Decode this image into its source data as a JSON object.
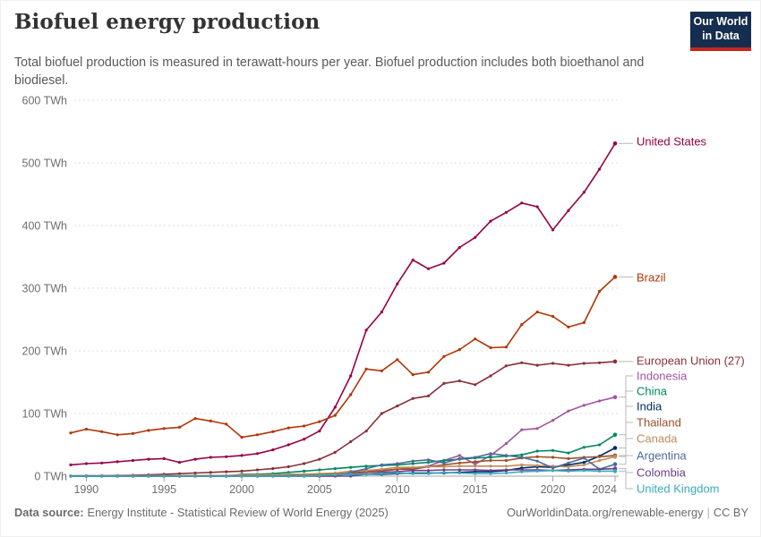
{
  "header": {
    "title": "Biofuel energy production",
    "subtitle": "Total biofuel production is measured in terawatt-hours per year. Biofuel production includes both bioethanol and biodiesel.",
    "logo": {
      "line1": "Our World",
      "line2": "in Data",
      "bg_color": "#152D4E",
      "accent_color": "#C5271E"
    }
  },
  "footer": {
    "source_label": "Data source:",
    "source_text": "Energy Institute - Statistical Review of World Energy (2025)",
    "url": "OurWorldinData.org/renewable-energy",
    "separator": "|",
    "license": "CC BY"
  },
  "chart_data": {
    "type": "line",
    "title": "Biofuel energy production",
    "xlabel": "",
    "ylabel": "",
    "unit": "TWh",
    "grid": "horizontal dashed",
    "legend_position": "right direct labels",
    "xlim": [
      1989,
      2024
    ],
    "ylim": [
      0,
      600
    ],
    "x": [
      1989,
      1990,
      1991,
      1992,
      1993,
      1994,
      1995,
      1996,
      1997,
      1998,
      1999,
      2000,
      2001,
      2002,
      2003,
      2004,
      2005,
      2006,
      2007,
      2008,
      2009,
      2010,
      2011,
      2012,
      2013,
      2014,
      2015,
      2016,
      2017,
      2018,
      2019,
      2020,
      2021,
      2022,
      2023,
      2024
    ],
    "xticks": [
      1990,
      1995,
      2000,
      2005,
      2010,
      2015,
      2020,
      2024
    ],
    "xtick_labels": [
      "1990",
      "1995",
      "2000",
      "2005",
      "2010",
      "2015",
      "2020",
      "2024"
    ],
    "yticks": [
      0,
      100,
      200,
      300,
      400,
      500,
      600
    ],
    "ytick_labels": [
      "0 TWh",
      "100 TWh",
      "200 TWh",
      "300 TWh",
      "400 TWh",
      "500 TWh",
      "600 TWh"
    ],
    "series": [
      {
        "name": "United States",
        "color": "#970046",
        "label_y": 157,
        "values": [
          18,
          20,
          21,
          23,
          25,
          27,
          28,
          22,
          27,
          30,
          31,
          33,
          36,
          42,
          50,
          59,
          72,
          110,
          160,
          233,
          262,
          307,
          345,
          331,
          340,
          365,
          381,
          407,
          421,
          436,
          430,
          393,
          424,
          453,
          490,
          531
        ]
      },
      {
        "name": "Brazil",
        "color": "#B13507",
        "label_y": 309,
        "values": [
          69,
          75,
          71,
          66,
          68,
          73,
          76,
          78,
          92,
          88,
          83,
          62,
          66,
          71,
          77,
          80,
          87,
          97,
          130,
          171,
          168,
          186,
          162,
          166,
          191,
          202,
          219,
          205,
          206,
          242,
          262,
          255,
          238,
          245,
          295,
          318
        ]
      },
      {
        "name": "European Union (27)",
        "color": "#883039",
        "label_y": 402,
        "values": [
          0.4,
          0.5,
          0.7,
          1,
          1.5,
          2,
          3,
          4,
          5,
          6,
          7,
          8,
          10,
          12,
          15,
          20,
          27,
          38,
          55,
          72,
          100,
          112,
          124,
          128,
          148,
          152,
          146,
          160,
          176,
          181,
          177,
          180,
          177,
          180,
          181,
          183
        ]
      },
      {
        "name": "Indonesia",
        "color": "#A2559C",
        "label_y": 419,
        "values": [
          0,
          0,
          0,
          0,
          0,
          0,
          0,
          0,
          0,
          0,
          0,
          0,
          0,
          0,
          0,
          0,
          1,
          2,
          4,
          6,
          8,
          11,
          13,
          16,
          25,
          33,
          19,
          33,
          52,
          74,
          76,
          89,
          104,
          113,
          120,
          126
        ]
      },
      {
        "name": "China",
        "color": "#00875E",
        "label_y": 436,
        "values": [
          0,
          0,
          0,
          0,
          0,
          0,
          0,
          0,
          0,
          0,
          0,
          3,
          3,
          4,
          6,
          8,
          10,
          12,
          14,
          16,
          17,
          18,
          20,
          22,
          25,
          27,
          29,
          30,
          32,
          34,
          40,
          41,
          37,
          46,
          50,
          66
        ]
      },
      {
        "name": "India",
        "color": "#00295B",
        "label_y": 453,
        "values": [
          0,
          0,
          0,
          0,
          0,
          0,
          0,
          0,
          0,
          0,
          0,
          0,
          0,
          1,
          1,
          2,
          3,
          3,
          3,
          3,
          3,
          4,
          5,
          5,
          5,
          6,
          7,
          7,
          9,
          13,
          15,
          14,
          18,
          22,
          32,
          45
        ]
      },
      {
        "name": "Thailand",
        "color": "#9A5129",
        "label_y": 471,
        "values": [
          0,
          0,
          0,
          0,
          0,
          0,
          0,
          0,
          0,
          0,
          0,
          0,
          0,
          0,
          0,
          1,
          2,
          3,
          5,
          7,
          9,
          11,
          11,
          15,
          18,
          21,
          23,
          25,
          25,
          29,
          31,
          30,
          28,
          30,
          31,
          33
        ]
      },
      {
        "name": "Canada",
        "color": "#BC8E5A",
        "label_y": 489,
        "values": [
          0.5,
          0.5,
          0.5,
          0.5,
          0.5,
          0.5,
          1,
          1,
          1,
          1,
          1,
          2,
          2,
          2,
          3,
          3,
          4,
          5,
          8,
          9,
          11,
          14,
          14,
          15,
          15,
          16,
          16,
          16,
          16,
          18,
          17,
          16,
          15,
          18,
          25,
          31
        ]
      },
      {
        "name": "Argentina",
        "color": "#4C6A9C",
        "label_y": 508,
        "values": [
          0,
          0,
          0,
          0,
          0,
          0,
          0,
          0,
          0,
          0,
          0,
          0,
          0,
          0,
          0,
          0,
          0,
          0,
          6,
          12,
          18,
          20,
          24,
          26,
          21,
          28,
          30,
          36,
          33,
          30,
          24,
          13,
          21,
          29,
          11,
          19
        ]
      },
      {
        "name": "Colombia",
        "color": "#6D3E91",
        "label_y": 527,
        "values": [
          0,
          0,
          0,
          0,
          0,
          0,
          0,
          0,
          0,
          0,
          0,
          0,
          0,
          0,
          0,
          0,
          0,
          0,
          0,
          3,
          6,
          7,
          9,
          9,
          10,
          10,
          10,
          9,
          10,
          10,
          10,
          9,
          10,
          11,
          11,
          12
        ]
      },
      {
        "name": "United Kingdom",
        "color": "#38AABA",
        "label_y": 545,
        "values": [
          0,
          0,
          0,
          0,
          0,
          0,
          0,
          0,
          0,
          0,
          0,
          0,
          0,
          0,
          0,
          0,
          1,
          2,
          3,
          3,
          4,
          5,
          4,
          4,
          6,
          5,
          4,
          4,
          5,
          7,
          8,
          9,
          8,
          9,
          8,
          8
        ]
      }
    ]
  }
}
